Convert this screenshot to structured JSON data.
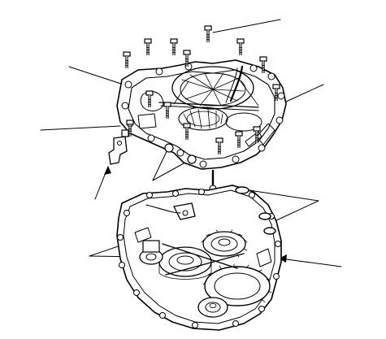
{
  "figure": {
    "description_visible_text": "",
    "ink_color": "#000000",
    "paper_color": "#ffffff"
  }
}
